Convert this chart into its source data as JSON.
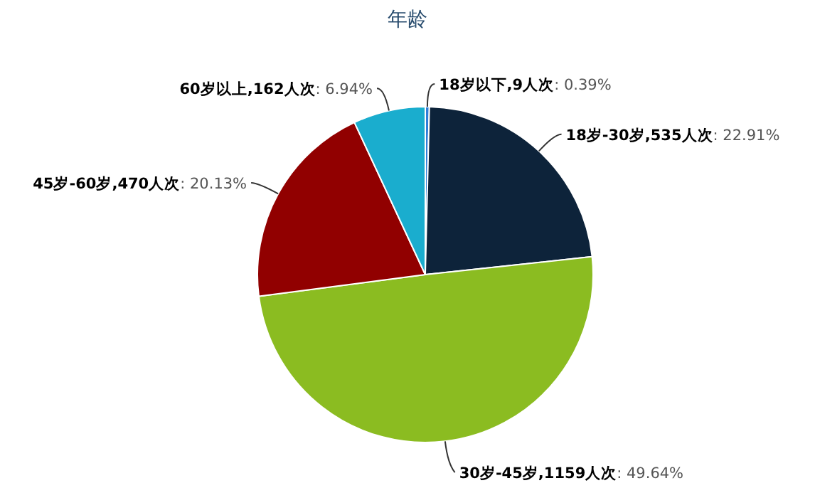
{
  "chart_data": {
    "type": "pie",
    "title": "年龄",
    "categories": [
      "18岁以下,9人次",
      "18岁-30岁,535人次",
      "30岁-45岁,1159人次",
      "45岁-60岁,470人次",
      "60岁以上,162人次"
    ],
    "values": [
      0.39,
      22.91,
      49.64,
      20.13,
      6.94
    ],
    "value_labels": [
      ": 0.39%",
      ": 22.91%",
      ": 49.64%",
      ": 20.13%",
      ": 6.94%"
    ],
    "colors": [
      "#2f7ed8",
      "#0d233a",
      "#8bbc21",
      "#910000",
      "#1aadce"
    ]
  }
}
